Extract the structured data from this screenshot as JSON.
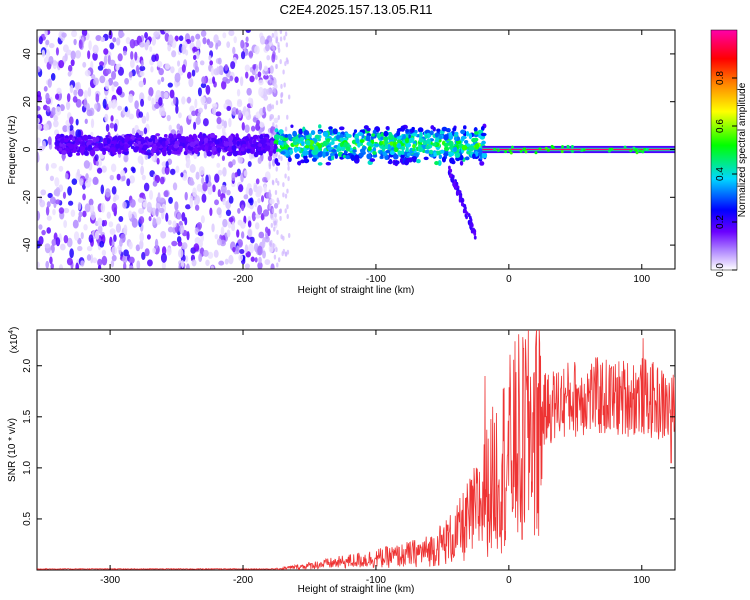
{
  "title": "C2E4.2025.157.13.05.R11",
  "chart_data": [
    {
      "type": "heatmap",
      "xlabel": "Height of straight line (km)",
      "ylabel": "Frequency (Hz)",
      "xlim": [
        -355,
        125
      ],
      "ylim": [
        -50,
        50
      ],
      "xticks": [
        -300,
        -200,
        -100,
        0,
        100
      ],
      "yticks": [
        -40,
        -20,
        0,
        20,
        40
      ],
      "colorbar": {
        "label": "Normalized spectral amplitude",
        "range": [
          0.0,
          1.0
        ],
        "ticks": [
          0.0,
          0.2,
          0.4,
          0.6,
          0.8
        ],
        "colormap": [
          "#ffffff",
          "#b088ff",
          "#6a00ff",
          "#0000ff",
          "#00d8ff",
          "#00ff00",
          "#ffff00",
          "#ff8000",
          "#ff0000",
          "#ff00aa"
        ]
      },
      "features": [
        {
          "x_range": [
            -355,
            -175
          ],
          "freq_range": [
            -50,
            50
          ],
          "amplitude": 0.12
        },
        {
          "x_range": [
            -175,
            -20
          ],
          "freq_center": 2,
          "freq_halfwidth": 8,
          "amplitude": 0.45
        },
        {
          "x_range": [
            -45,
            -25
          ],
          "freq_range": [
            -40,
            -10
          ],
          "amplitude": 0.2
        },
        {
          "x_range": [
            -20,
            125
          ],
          "freq_center": 0,
          "freq_halfwidth": 1.5,
          "amplitude": 0.95
        }
      ]
    },
    {
      "type": "line",
      "xlabel": "Height of straight line (km)",
      "ylabel": "SNR (10 * v/v)",
      "scale_label": "(x10",
      "scale_exponent": "4",
      "xlim": [
        -355,
        125
      ],
      "ylim": [
        0,
        2.35
      ],
      "xticks": [
        -300,
        -200,
        -100,
        0,
        100
      ],
      "yticks": [
        0.5,
        1.0,
        1.5,
        2.0
      ],
      "ytick_labels": [
        "0.5",
        "1.0",
        "1.5",
        "2.0"
      ],
      "color": "#ee3333",
      "envelope": {
        "x": [
          -355,
          -175,
          -160,
          -140,
          -120,
          -100,
          -80,
          -60,
          -40,
          -25,
          -15,
          -5,
          5,
          20,
          40,
          60,
          80,
          100,
          125
        ],
        "y": [
          0.01,
          0.01,
          0.03,
          0.06,
          0.09,
          0.12,
          0.15,
          0.2,
          0.35,
          0.6,
          0.85,
          1.1,
          1.3,
          1.55,
          1.7,
          1.75,
          1.72,
          1.75,
          1.6
        ]
      },
      "peaks": [
        {
          "x": -18,
          "y": 1.9
        },
        {
          "x": 11,
          "y": 2.17
        },
        {
          "x": 101,
          "y": 2.27
        },
        {
          "x": 122,
          "y": 2.35
        }
      ],
      "dips": [
        {
          "x": 10,
          "y": 0.3
        },
        {
          "x": 122,
          "y": 1.05
        }
      ]
    }
  ]
}
